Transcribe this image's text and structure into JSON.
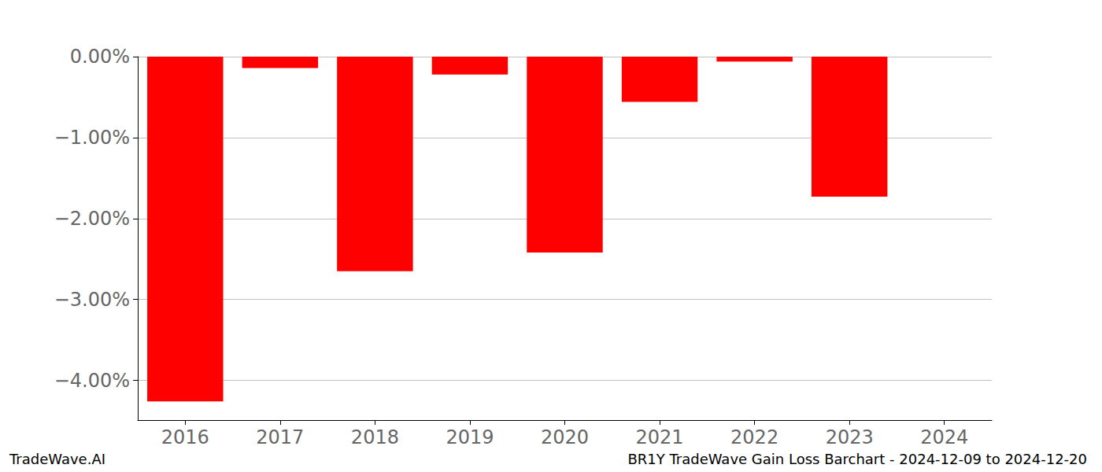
{
  "chart_data": {
    "type": "bar",
    "title": "BR1Y TradeWave Gain Loss Barchart - 2024-12-09 to 2024-12-20",
    "annotations": [
      "TradeWave.AI"
    ],
    "categories": [
      "2016",
      "2017",
      "2018",
      "2019",
      "2020",
      "2021",
      "2022",
      "2023",
      "2024"
    ],
    "values": [
      -4.26,
      -0.14,
      -2.65,
      -0.22,
      -2.42,
      -0.56,
      -0.06,
      -1.73,
      null
    ],
    "color": "#ff0000",
    "ylim": [
      -4.49,
      0
    ],
    "yticks": [
      {
        "value": 0,
        "label": "0.00%"
      },
      {
        "value": -1,
        "label": "−1.00%"
      },
      {
        "value": -2,
        "label": "−2.00%"
      },
      {
        "value": -3,
        "label": "−3.00%"
      },
      {
        "value": -4,
        "label": "−4.00%"
      }
    ],
    "grid": true
  }
}
